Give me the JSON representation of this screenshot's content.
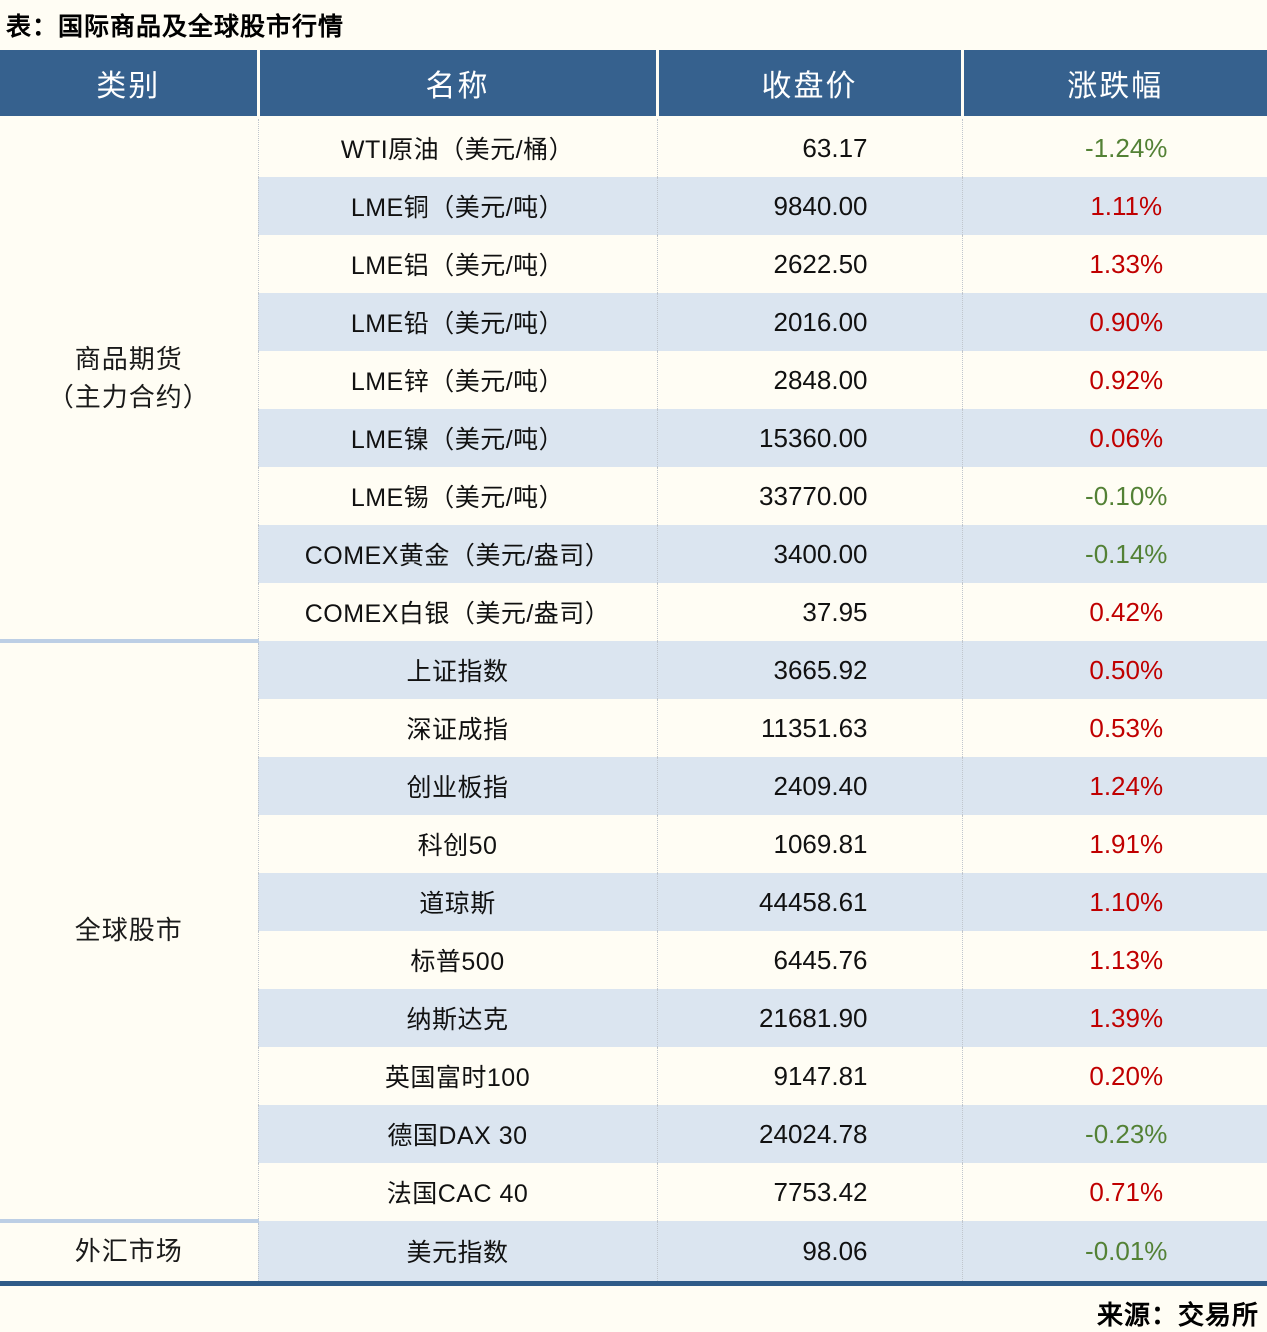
{
  "chart_data": {
    "type": "table",
    "title": "表：国际商品及全球股市行情",
    "columns": [
      "类别",
      "名称",
      "收盘价",
      "涨跌幅"
    ],
    "groups": [
      {
        "category_lines": [
          "商品期货",
          "（主力合约）"
        ],
        "rows": [
          {
            "name": "WTI原油（美元/桶）",
            "close": "63.17",
            "change": "-1.24%"
          },
          {
            "name": "LME铜（美元/吨）",
            "close": "9840.00",
            "change": "1.11%"
          },
          {
            "name": "LME铝（美元/吨）",
            "close": "2622.50",
            "change": "1.33%"
          },
          {
            "name": "LME铅（美元/吨）",
            "close": "2016.00",
            "change": "0.90%"
          },
          {
            "name": "LME锌（美元/吨）",
            "close": "2848.00",
            "change": "0.92%"
          },
          {
            "name": "LME镍（美元/吨）",
            "close": "15360.00",
            "change": "0.06%"
          },
          {
            "name": "LME锡（美元/吨）",
            "close": "33770.00",
            "change": "-0.10%"
          },
          {
            "name": "COMEX黄金（美元/盎司）",
            "close": "3400.00",
            "change": "-0.14%"
          },
          {
            "name": "COMEX白银（美元/盎司）",
            "close": "37.95",
            "change": "0.42%"
          }
        ]
      },
      {
        "category_lines": [
          "全球股市"
        ],
        "rows": [
          {
            "name": "上证指数",
            "close": "3665.92",
            "change": "0.50%"
          },
          {
            "name": "深证成指",
            "close": "11351.63",
            "change": "0.53%"
          },
          {
            "name": "创业板指",
            "close": "2409.40",
            "change": "1.24%"
          },
          {
            "name": "科创50",
            "close": "1069.81",
            "change": "1.91%"
          },
          {
            "name": "道琼斯",
            "close": "44458.61",
            "change": "1.10%"
          },
          {
            "name": "标普500",
            "close": "6445.76",
            "change": "1.13%"
          },
          {
            "name": "纳斯达克",
            "close": "21681.90",
            "change": "1.39%"
          },
          {
            "name": "英国富时100",
            "close": "9147.81",
            "change": "0.20%"
          },
          {
            "name": "德国DAX 30",
            "close": "24024.78",
            "change": "-0.23%"
          },
          {
            "name": "法国CAC 40",
            "close": "7753.42",
            "change": "0.71%"
          }
        ]
      },
      {
        "category_lines": [
          "外汇市场"
        ],
        "rows": [
          {
            "name": "美元指数",
            "close": "98.06",
            "change": "-0.01%"
          }
        ]
      }
    ],
    "source": "来源：交易所",
    "colors": {
      "header_bg": "#36618e",
      "alt_row_bg": "#dbe5f0",
      "up_red": "#c00000",
      "down_green": "#538135",
      "group_separator": "#bdcfe5",
      "bottom_border": "#2f5b88",
      "page_bg": "#fffdf4"
    }
  }
}
